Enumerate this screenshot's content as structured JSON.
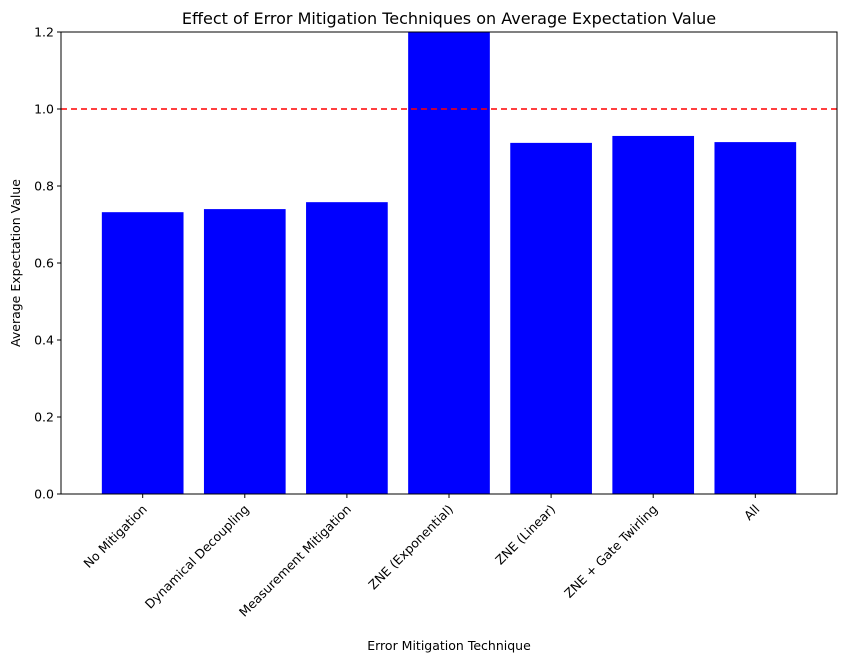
{
  "chart_data": {
    "type": "bar",
    "title": "Effect of Error Mitigation Techniques on Average Expectation Value",
    "xlabel": "Error Mitigation Technique",
    "ylabel": "Average Expectation Value",
    "categories": [
      "No Mitigation",
      "Dynamical Decoupling",
      "Measurement Mitigation",
      "ZNE (Exponential)",
      "ZNE (Linear)",
      "ZNE + Gate Twirling",
      "All"
    ],
    "values": [
      0.732,
      0.74,
      0.758,
      1.21,
      0.912,
      0.93,
      0.914
    ],
    "ylim": [
      0,
      1.2
    ],
    "yticks": [
      "0.0",
      "0.2",
      "0.4",
      "0.6",
      "0.8",
      "1.0",
      "1.2"
    ],
    "bar_color": "#0000ff",
    "reference_line": {
      "y": 1.0,
      "color": "#ff0000",
      "style": "dashed"
    },
    "grid": false,
    "legend": "none"
  }
}
